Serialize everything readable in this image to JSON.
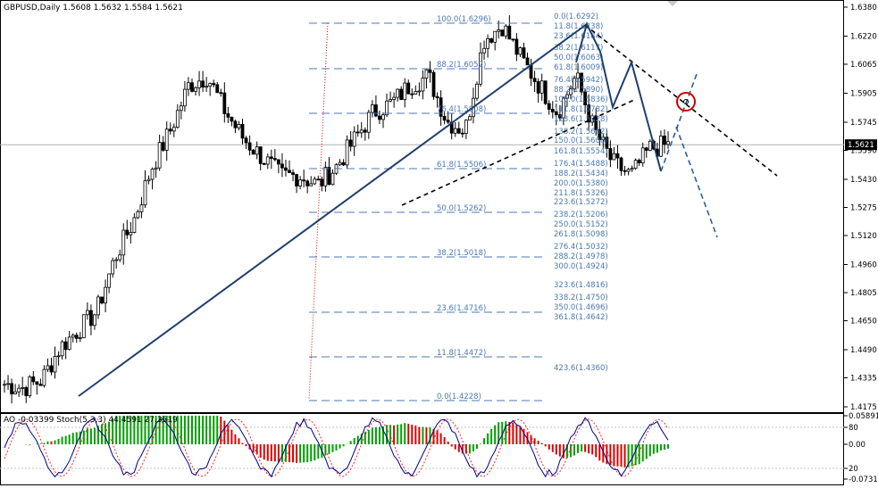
{
  "main_header": {
    "text": "GBPUSD,Daily  1.5608 1.5632 1.5584 1.5621"
  },
  "indicator_header": {
    "text": "AO -0.03399  Stoch(5,3,3) 44.4591 27.3519"
  },
  "price_scale": {
    "ticks": [
      "1.6380",
      "1.6220",
      "1.6065",
      "1.5905",
      "1.5745",
      "1.5590",
      "1.5430",
      "1.5275",
      "1.5120",
      "1.4960",
      "1.4805",
      "1.4650",
      "1.4490",
      "1.4335",
      "1.4175"
    ],
    "current_price": "1.5621"
  },
  "indicator_scale": {
    "ticks": [
      "0.05891",
      "80",
      "0.00",
      "20",
      "-0.07311"
    ]
  },
  "colors": {
    "candle": "#000000",
    "trendline": "#1f3f6e",
    "fib_left": "#4a78b0",
    "fib_right": "#4a78b0",
    "black_dashed": "#000000",
    "blue_dashed": "#2a5d94",
    "red_vertical": "#dd0000",
    "circle": "#cc0000",
    "ao_up": "#00a000",
    "ao_down": "#dd0000",
    "stoch_main": "#000080",
    "stoch_signal": "#ff2020"
  },
  "fib_left_labels": [
    "100.0(1.6296)",
    "88.2(1.6052)",
    "76.4(1.5808)",
    "61.8(1.5506)",
    "50.0(1.5262)",
    "38.2(1.5018)",
    "23.6(1.4716)",
    "11.8(1.4472)",
    "0.0(1.4228)"
  ],
  "fib_right_labels": [
    "0.0(1.6292)",
    "11.8(1.6238)",
    "23.6(1.6184)",
    "38.2(1.6117)",
    "50.0(1.6063)",
    "61.8(1.6009)",
    "76.4(1.5942)",
    "88.2(1.5890)",
    "100.0(1.5836)",
    "111.8(1.5782)",
    "123.6(1.5728)",
    "138.2(1.5662)",
    "150.0(1.5608)",
    "161.8(1.5554)",
    "176.4(1.5488)",
    "188.2(1.5434)",
    "200.0(1.5380)",
    "211.8(1.5326)",
    "223.6(1.5272)",
    "238.2(1.5206)",
    "250.0(1.5152)",
    "261.8(1.5098)",
    "276.4(1.5032)",
    "288.2(1.4978)",
    "300.0(1.4924)",
    "323.6(1.4816)",
    "338.2(1.4750)",
    "350.0(1.4696)",
    "361.8(1.4642)",
    "423.6(1.4360)"
  ],
  "chart_data": {
    "type": "candlestick",
    "symbol": "GBPUSD",
    "timeframe": "Daily",
    "last_bar": {
      "open": 1.5608,
      "high": 1.5632,
      "low": 1.5584,
      "close": 1.5621
    },
    "ylim": [
      1.4175,
      1.638
    ],
    "approx_close_path": [
      1.43,
      1.428,
      1.432,
      1.45,
      1.46,
      1.47,
      1.5,
      1.52,
      1.55,
      1.57,
      1.595,
      1.6,
      1.58,
      1.565,
      1.555,
      1.545,
      1.545,
      1.54,
      1.55,
      1.565,
      1.58,
      1.585,
      1.595,
      1.6,
      1.575,
      1.57,
      1.62,
      1.628,
      1.61,
      1.595,
      1.58,
      1.6,
      1.57,
      1.552,
      1.545,
      1.56,
      1.562
    ],
    "indicators": {
      "ao": {
        "value": -0.03399,
        "scale": [
          -0.07311,
          0.05891
        ]
      },
      "stochastic": {
        "params": "5,3,3",
        "main": 44.4591,
        "signal": 27.3519,
        "levels": [
          20,
          80
        ]
      }
    }
  }
}
